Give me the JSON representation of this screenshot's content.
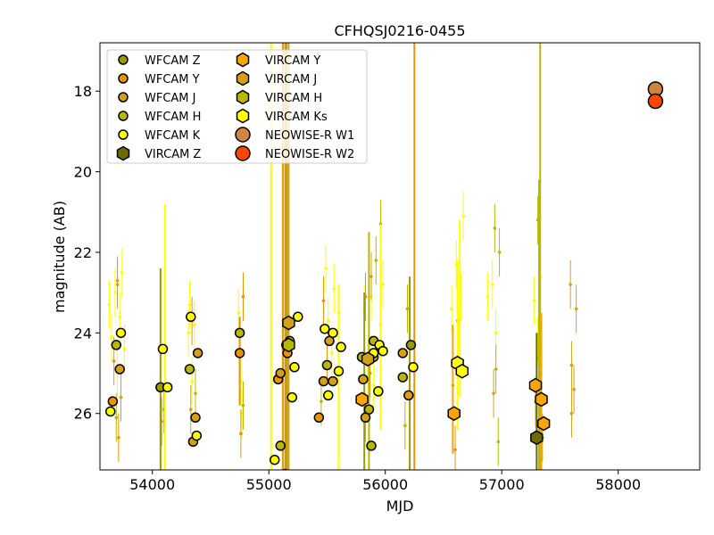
{
  "chart_data": {
    "type": "scatter",
    "title": "CFHQSJ0216-0455",
    "xlabel": "MJD",
    "ylabel": "magnitude (AB)",
    "xlim": [
      53550,
      58700
    ],
    "ylim": [
      27.4,
      16.8
    ],
    "y_inverted": true,
    "x_ticks": [
      54000,
      55000,
      56000,
      57000,
      58000
    ],
    "x_tick_labels": [
      "54000",
      "55000",
      "56000",
      "57000",
      "58000"
    ],
    "y_ticks": [
      18,
      20,
      22,
      24,
      26
    ],
    "y_tick_labels": [
      "18",
      "20",
      "22",
      "24",
      "26"
    ],
    "grid": false,
    "legend_position": "top-left",
    "series": [
      {
        "name": "WFCAM Z",
        "marker": "circle",
        "color": "#9a9a00",
        "points": [
          [
            54070,
            25.35
          ],
          [
            55150,
            24.3
          ],
          [
            55800,
            24.6
          ],
          [
            56220,
            24.3
          ]
        ],
        "errors": [
          [
            54070,
            22.4,
            27.4
          ],
          [
            55150,
            16.8,
            27.4
          ],
          [
            55820,
            23.0,
            27.4
          ],
          [
            56210,
            22.6,
            27.4
          ]
        ]
      },
      {
        "name": "WFCAM Y",
        "marker": "circle",
        "color": "#e89400",
        "points": [
          [
            53660,
            25.7
          ],
          [
            54750,
            24.5
          ],
          [
            55080,
            25.15
          ],
          [
            55160,
            24.5
          ],
          [
            55430,
            26.1
          ],
          [
            55900,
            24.6
          ]
        ],
        "errors": [
          [
            55120,
            16.8,
            27.4
          ],
          [
            56250,
            16.8,
            27.4
          ],
          [
            54750,
            23.6,
            25.8
          ]
        ]
      },
      {
        "name": "WFCAM J",
        "marker": "circle",
        "color": "#d4a017",
        "points": [
          [
            53720,
            24.9
          ],
          [
            54370,
            26.1
          ],
          [
            54350,
            26.7
          ],
          [
            54390,
            24.5
          ],
          [
            55100,
            25.0
          ],
          [
            55470,
            25.2
          ],
          [
            55520,
            24.2
          ],
          [
            55550,
            25.2
          ],
          [
            55810,
            25.15
          ],
          [
            55830,
            26.1
          ],
          [
            56150,
            24.5
          ],
          [
            56200,
            25.55
          ]
        ],
        "errors": [
          [
            55140,
            16.8,
            27.4
          ],
          [
            55160,
            19.0,
            27.4
          ]
        ]
      },
      {
        "name": "WFCAM H",
        "marker": "circle",
        "color": "#b8b800",
        "points": [
          [
            53690,
            24.3
          ],
          [
            54320,
            24.9
          ],
          [
            54750,
            24.0
          ],
          [
            55100,
            26.8
          ],
          [
            55180,
            24.2
          ],
          [
            55500,
            24.8
          ],
          [
            55800,
            24.6
          ],
          [
            55860,
            25.9
          ],
          [
            55880,
            26.8
          ],
          [
            55900,
            24.2
          ],
          [
            56150,
            25.1
          ]
        ],
        "errors": [
          [
            55860,
            21.5,
            27.4
          ],
          [
            57330,
            16.8,
            27.4
          ],
          [
            57320,
            20.2,
            27.4
          ]
        ]
      },
      {
        "name": "WFCAM K",
        "marker": "circle",
        "color": "#ffff00",
        "points": [
          [
            53640,
            25.95
          ],
          [
            53730,
            24.0
          ],
          [
            54090,
            24.4
          ],
          [
            54130,
            25.35
          ],
          [
            54330,
            23.6
          ],
          [
            54380,
            26.55
          ],
          [
            55050,
            27.15
          ],
          [
            55140,
            27.5
          ],
          [
            55200,
            25.6
          ],
          [
            55220,
            24.85
          ],
          [
            55250,
            23.6
          ],
          [
            55480,
            23.9
          ],
          [
            55510,
            25.55
          ],
          [
            55550,
            24.0
          ],
          [
            55600,
            24.95
          ],
          [
            55620,
            24.35
          ],
          [
            55900,
            24.5
          ],
          [
            55940,
            25.45
          ],
          [
            55950,
            24.3
          ],
          [
            55980,
            24.45
          ],
          [
            56240,
            24.85
          ]
        ],
        "errors": [
          [
            54110,
            20.8,
            27.4
          ],
          [
            55020,
            16.8,
            27.4
          ],
          [
            55600,
            22.8,
            27.4
          ],
          [
            55960,
            21.3,
            26.4
          ],
          [
            56640,
            21.2,
            25.6
          ]
        ]
      },
      {
        "name": "VIRCAM Z",
        "marker": "hexagon",
        "color": "#6b6b00",
        "points": [
          [
            57300,
            26.6
          ]
        ],
        "errors": [
          [
            57300,
            24.0,
            27.4
          ]
        ]
      },
      {
        "name": "VIRCAM Y",
        "marker": "hexagon",
        "color": "#ffa500",
        "points": [
          [
            55800,
            25.65
          ],
          [
            56590,
            26.0
          ],
          [
            57290,
            25.3
          ],
          [
            57340,
            25.65
          ],
          [
            57360,
            26.25
          ]
        ],
        "errors": [
          [
            56580,
            23.8,
            27.0
          ],
          [
            57340,
            23.5,
            27.4
          ]
        ]
      },
      {
        "name": "VIRCAM J",
        "marker": "hexagon",
        "color": "#d4a017",
        "points": [
          [
            55170,
            23.75
          ],
          [
            55850,
            24.65
          ]
        ],
        "errors": [
          [
            55170,
            16.8,
            27.4
          ]
        ]
      },
      {
        "name": "VIRCAM H",
        "marker": "hexagon",
        "color": "#b8b800",
        "points": [
          [
            55170,
            24.3
          ]
        ],
        "errors": []
      },
      {
        "name": "VIRCAM Ks",
        "marker": "hexagon",
        "color": "#ffff00",
        "points": [
          [
            56620,
            24.75
          ],
          [
            56660,
            24.95
          ]
        ],
        "errors": [
          [
            56620,
            22.2,
            26.4
          ]
        ]
      },
      {
        "name": "NEOWISE-R W1",
        "marker": "circle-large",
        "color": "#cd853f",
        "points": [
          [
            58320,
            17.95
          ]
        ],
        "errors": [
          [
            58320,
            17.75,
            18.2
          ]
        ]
      },
      {
        "name": "NEOWISE-R W2",
        "marker": "circle-large",
        "color": "#ff4500",
        "points": [
          [
            58320,
            18.25
          ]
        ],
        "errors": []
      }
    ],
    "background_points": [
      {
        "color": "#ffff00",
        "points": [
          [
            53630,
            23.3
          ],
          [
            53650,
            24.1
          ],
          [
            53680,
            23.0
          ],
          [
            53700,
            25.0
          ],
          [
            53720,
            23.6
          ],
          [
            53740,
            22.5
          ],
          [
            53760,
            24.4
          ],
          [
            54310,
            24.0
          ],
          [
            54320,
            23.3
          ],
          [
            54340,
            25.2
          ],
          [
            54360,
            23.8
          ],
          [
            54760,
            25.2
          ],
          [
            54770,
            26.0
          ],
          [
            54740,
            23.5
          ],
          [
            55490,
            22.4
          ],
          [
            55510,
            23.7
          ],
          [
            55540,
            24.5
          ],
          [
            55560,
            22.9
          ],
          [
            55600,
            23.5
          ],
          [
            55820,
            23.4
          ],
          [
            55850,
            24.8
          ],
          [
            55880,
            23.1
          ],
          [
            55900,
            25.3
          ],
          [
            55960,
            23.8
          ],
          [
            55980,
            22.8
          ],
          [
            56570,
            23.4
          ],
          [
            56610,
            22.3
          ],
          [
            56630,
            24.0
          ],
          [
            56650,
            23.1
          ],
          [
            56670,
            21.1
          ],
          [
            56880,
            23.1
          ],
          [
            56920,
            22.8
          ],
          [
            56950,
            24.0
          ],
          [
            57280,
            23.2
          ],
          [
            57310,
            24.2
          ],
          [
            57330,
            22.6
          ]
        ]
      },
      {
        "color": "#e89400",
        "points": [
          [
            53670,
            24.7
          ],
          [
            53710,
            26.6
          ],
          [
            53700,
            22.8
          ],
          [
            54080,
            26.2
          ],
          [
            54340,
            23.7
          ],
          [
            54760,
            26.5
          ],
          [
            54780,
            23.1
          ],
          [
            55470,
            23.2
          ],
          [
            55500,
            24.7
          ],
          [
            55830,
            23.1
          ],
          [
            55870,
            25.0
          ],
          [
            56580,
            25.3
          ],
          [
            56600,
            26.9
          ],
          [
            56620,
            23.7
          ],
          [
            57300,
            26.3
          ],
          [
            57320,
            24.6
          ]
        ]
      },
      {
        "color": "#d4a017",
        "points": [
          [
            53700,
            22.7
          ],
          [
            53730,
            25.6
          ],
          [
            54330,
            25.9
          ],
          [
            55880,
            22.6
          ],
          [
            56930,
            25.5
          ],
          [
            57590,
            22.8
          ],
          [
            57600,
            24.8
          ],
          [
            57620,
            25.4
          ],
          [
            57640,
            23.4
          ],
          [
            57600,
            26.0
          ]
        ]
      },
      {
        "color": "#b8b800",
        "points": [
          [
            53690,
            26.1
          ],
          [
            54100,
            25.9
          ],
          [
            54370,
            25.5
          ],
          [
            54780,
            25.8
          ],
          [
            55450,
            25.7
          ],
          [
            55830,
            26.1
          ],
          [
            55920,
            22.2
          ],
          [
            55960,
            21.3
          ],
          [
            56170,
            26.3
          ],
          [
            56190,
            23.4
          ],
          [
            56940,
            21.4
          ],
          [
            56950,
            24.9
          ],
          [
            56970,
            26.7
          ],
          [
            56980,
            22.0
          ],
          [
            57290,
            25.7
          ],
          [
            57310,
            21.2
          ],
          [
            57350,
            26.6
          ]
        ]
      }
    ]
  }
}
